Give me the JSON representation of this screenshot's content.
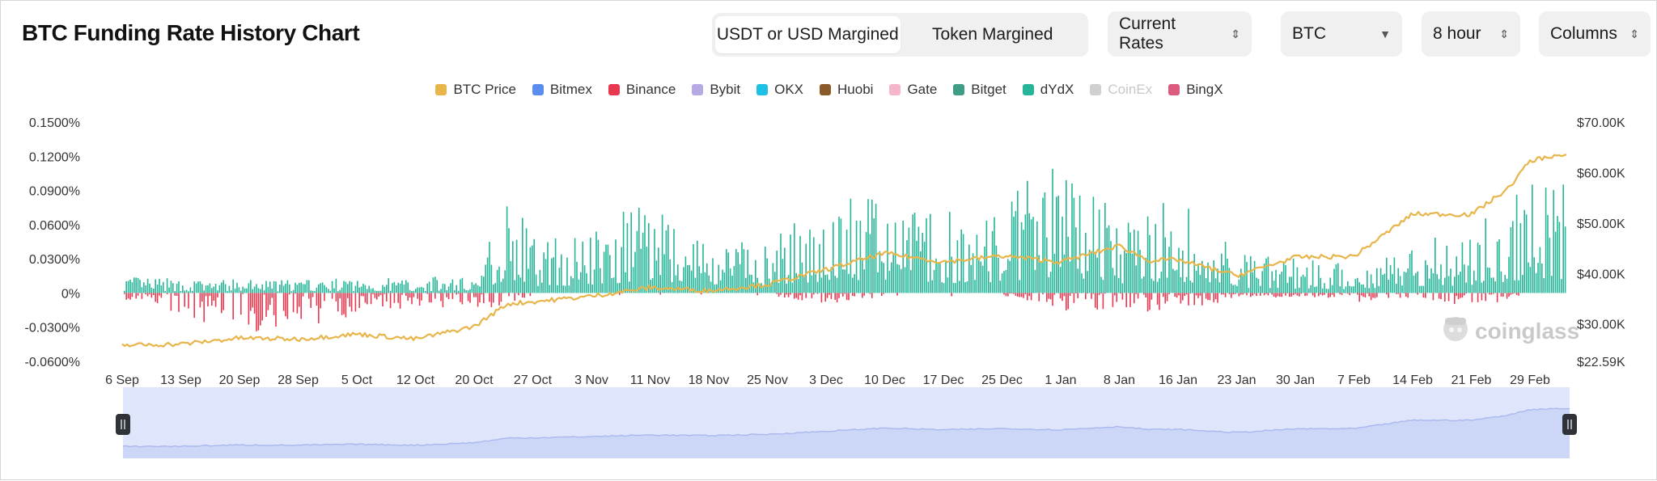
{
  "header": {
    "title": "BTC Funding Rate History Chart",
    "toggle": [
      {
        "label": "USDT or USD Margined",
        "active": true
      },
      {
        "label": "Token Margined",
        "active": false
      }
    ],
    "selects": {
      "rate_type": "Current Rates",
      "coin": "BTC",
      "interval": "8 hour",
      "chart_style": "Columns"
    }
  },
  "legend": [
    {
      "name": "BTC Price",
      "color": "#e8b54a",
      "enabled": true
    },
    {
      "name": "Bitmex",
      "color": "#5b8def",
      "enabled": true
    },
    {
      "name": "Binance",
      "color": "#e8384f",
      "enabled": true
    },
    {
      "name": "Bybit",
      "color": "#b7a9e3",
      "enabled": true
    },
    {
      "name": "OKX",
      "color": "#1ec0e6",
      "enabled": true
    },
    {
      "name": "Huobi",
      "color": "#8b5a2b",
      "enabled": true
    },
    {
      "name": "Gate",
      "color": "#f4b6c8",
      "enabled": true
    },
    {
      "name": "Bitget",
      "color": "#3f9c86",
      "enabled": true
    },
    {
      "name": "dYdX",
      "color": "#26b598",
      "enabled": true
    },
    {
      "name": "CoinEx",
      "color": "#d0d0d0",
      "enabled": false
    },
    {
      "name": "BingX",
      "color": "#dd5a7f",
      "enabled": true
    }
  ],
  "watermark": "coinglass",
  "colors": {
    "positive_bar": "#26b598",
    "negative_bar": "#e8384f",
    "price_line": "#e8b54a",
    "navigator_fill": "#dfe5fb",
    "navigator_line": "#a9b8ee"
  },
  "chart_data": {
    "type": "bar",
    "x_labels": [
      "6 Sep",
      "13 Sep",
      "20 Sep",
      "28 Sep",
      "5 Oct",
      "12 Oct",
      "20 Oct",
      "27 Oct",
      "3 Nov",
      "11 Nov",
      "18 Nov",
      "25 Nov",
      "3 Dec",
      "10 Dec",
      "17 Dec",
      "25 Dec",
      "1 Jan",
      "8 Jan",
      "16 Jan",
      "23 Jan",
      "30 Jan",
      "7 Feb",
      "14 Feb",
      "21 Feb",
      "29 Feb"
    ],
    "y_left": {
      "ticks": [
        "0.1500%",
        "0.1200%",
        "0.0900%",
        "0.0600%",
        "0.0300%",
        "0%",
        "-0.0300%",
        "-0.0600%"
      ],
      "range": [
        -0.06,
        0.15
      ]
    },
    "y_right": {
      "ticks": [
        "$70.00K",
        "$60.00K",
        "$50.00K",
        "$40.00K",
        "$30.00K",
        "$22.59K"
      ],
      "range": [
        22.59,
        70.0
      ]
    },
    "funding_rate_envelope_percent": {
      "dates": [
        "6 Sep",
        "13 Sep",
        "20 Sep",
        "28 Sep",
        "5 Oct",
        "12 Oct",
        "20 Oct",
        "24 Oct",
        "27 Oct",
        "3 Nov",
        "11 Nov",
        "18 Nov",
        "25 Nov",
        "3 Dec",
        "10 Dec",
        "17 Dec",
        "25 Dec",
        "1 Jan",
        "8 Jan",
        "16 Jan",
        "23 Jan",
        "30 Jan",
        "7 Feb",
        "14 Feb",
        "21 Feb",
        "29 Feb",
        "3 Mar"
      ],
      "max": [
        0.016,
        0.012,
        0.012,
        0.012,
        0.013,
        0.014,
        0.016,
        0.093,
        0.05,
        0.055,
        0.094,
        0.05,
        0.045,
        0.085,
        0.085,
        0.07,
        0.082,
        0.125,
        0.068,
        0.085,
        0.035,
        0.03,
        0.025,
        0.05,
        0.055,
        0.1,
        0.102
      ],
      "min": [
        -0.008,
        -0.02,
        -0.035,
        -0.032,
        -0.02,
        -0.012,
        -0.013,
        -0.015,
        -0.002,
        -0.002,
        -0.002,
        -0.002,
        -0.002,
        -0.01,
        -0.003,
        -0.003,
        -0.003,
        -0.016,
        -0.015,
        -0.018,
        -0.004,
        -0.004,
        -0.008,
        -0.004,
        -0.013,
        -0.002,
        -0.002
      ]
    },
    "btc_price_k": {
      "dates": [
        "6 Sep",
        "13 Sep",
        "20 Sep",
        "28 Sep",
        "5 Oct",
        "12 Oct",
        "20 Oct",
        "24 Oct",
        "27 Oct",
        "3 Nov",
        "11 Nov",
        "18 Nov",
        "25 Nov",
        "3 Dec",
        "10 Dec",
        "17 Dec",
        "25 Dec",
        "1 Jan",
        "8 Jan",
        "12 Jan",
        "16 Jan",
        "23 Jan",
        "30 Jan",
        "7 Feb",
        "14 Feb",
        "21 Feb",
        "26 Feb",
        "29 Feb",
        "3 Mar"
      ],
      "values": [
        25.8,
        26.0,
        27.2,
        27.0,
        28.0,
        27.0,
        29.5,
        34.0,
        34.4,
        35.5,
        37.2,
        36.6,
        37.8,
        40.8,
        44.0,
        42.3,
        43.5,
        42.3,
        45.5,
        42.6,
        42.7,
        39.6,
        43.2,
        43.4,
        51.8,
        51.7,
        56.8,
        62.3,
        63.3
      ]
    },
    "title": "",
    "xlabel": "",
    "ylabel": "",
    "grid": false,
    "legend_position": "top-center"
  }
}
